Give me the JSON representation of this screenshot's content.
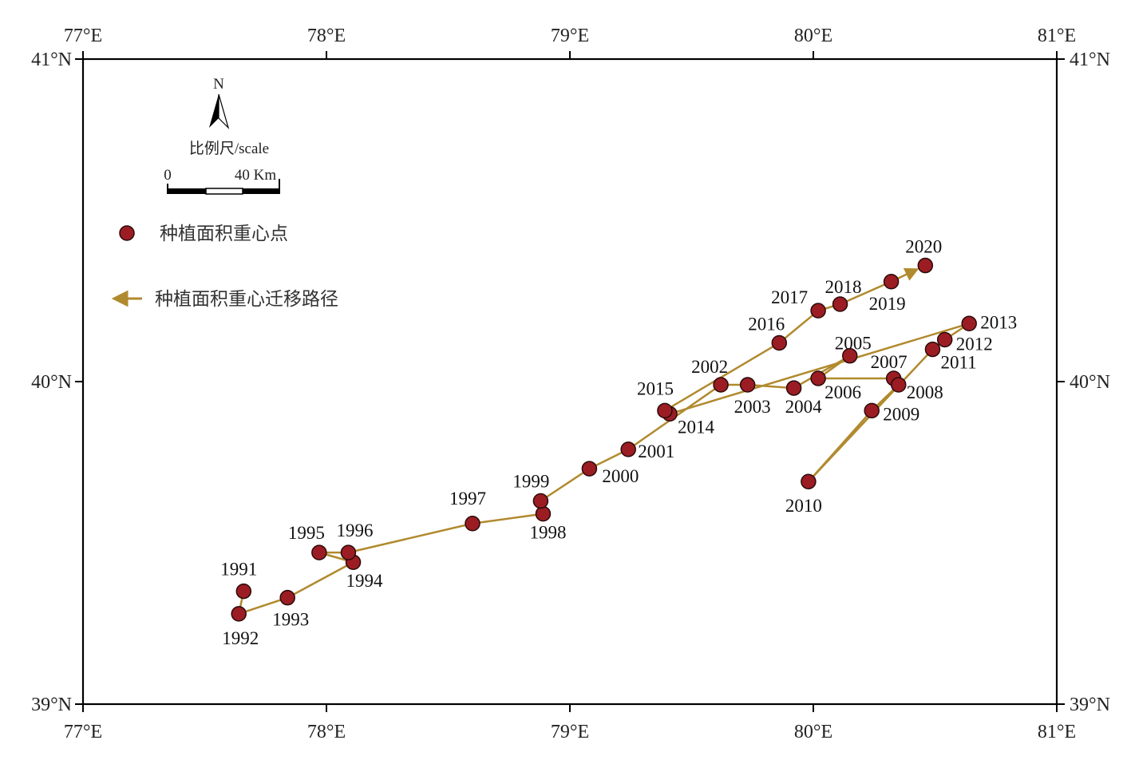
{
  "map": {
    "lon_range": [
      77,
      81
    ],
    "lat_range": [
      39,
      41
    ],
    "x_ticks": [
      {
        "value": 77,
        "label": "77°E"
      },
      {
        "value": 78,
        "label": "78°E"
      },
      {
        "value": 79,
        "label": "79°E"
      },
      {
        "value": 80,
        "label": "80°E"
      },
      {
        "value": 81,
        "label": "81°E"
      }
    ],
    "y_ticks": [
      {
        "value": 41,
        "label": "41°N"
      },
      {
        "value": 40,
        "label": "40°N"
      },
      {
        "value": 39,
        "label": "39°N"
      }
    ],
    "north_arrow_label": "N",
    "scale_title": "比例尺/scale",
    "scale_start": "0",
    "scale_end": "40 Km",
    "legend": {
      "point_label": "种植面积重心点",
      "path_label": "种植面积重心迁移路径"
    },
    "colors": {
      "point_fill": "#9b1d23",
      "point_stroke": "#2a0a0a",
      "path": "#b08a2e",
      "frame": "#000000"
    },
    "points": [
      {
        "year": "1991",
        "lon": 77.66,
        "lat": 39.35
      },
      {
        "year": "1992",
        "lon": 77.64,
        "lat": 39.28
      },
      {
        "year": "1993",
        "lon": 77.84,
        "lat": 39.33
      },
      {
        "year": "1994",
        "lon": 78.11,
        "lat": 39.44
      },
      {
        "year": "1995",
        "lon": 77.97,
        "lat": 39.47
      },
      {
        "year": "1996",
        "lon": 78.09,
        "lat": 39.47
      },
      {
        "year": "1997",
        "lon": 78.6,
        "lat": 39.56
      },
      {
        "year": "1998",
        "lon": 78.89,
        "lat": 39.59
      },
      {
        "year": "1999",
        "lon": 78.88,
        "lat": 39.63
      },
      {
        "year": "2000",
        "lon": 79.08,
        "lat": 39.73
      },
      {
        "year": "2001",
        "lon": 79.24,
        "lat": 39.79
      },
      {
        "year": "2002",
        "lon": 79.62,
        "lat": 39.99
      },
      {
        "year": "2003",
        "lon": 79.73,
        "lat": 39.99
      },
      {
        "year": "2004",
        "lon": 79.92,
        "lat": 39.98
      },
      {
        "year": "2005",
        "lon": 80.15,
        "lat": 40.08
      },
      {
        "year": "2006",
        "lon": 80.02,
        "lat": 40.01
      },
      {
        "year": "2007",
        "lon": 80.33,
        "lat": 40.01
      },
      {
        "year": "2008",
        "lon": 80.35,
        "lat": 39.99
      },
      {
        "year": "2009",
        "lon": 80.24,
        "lat": 39.91
      },
      {
        "year": "2010",
        "lon": 79.98,
        "lat": 39.69
      },
      {
        "year": "2011",
        "lon": 80.49,
        "lat": 40.1
      },
      {
        "year": "2012",
        "lon": 80.54,
        "lat": 40.13
      },
      {
        "year": "2013",
        "lon": 80.64,
        "lat": 40.18
      },
      {
        "year": "2014",
        "lon": 79.41,
        "lat": 39.9
      },
      {
        "year": "2015",
        "lon": 79.39,
        "lat": 39.91
      },
      {
        "year": "2016",
        "lon": 79.86,
        "lat": 40.12
      },
      {
        "year": "2017",
        "lon": 80.02,
        "lat": 40.22
      },
      {
        "year": "2018",
        "lon": 80.11,
        "lat": 40.24
      },
      {
        "year": "2019",
        "lon": 80.32,
        "lat": 40.31
      },
      {
        "year": "2020",
        "lon": 80.46,
        "lat": 40.36
      }
    ]
  }
}
